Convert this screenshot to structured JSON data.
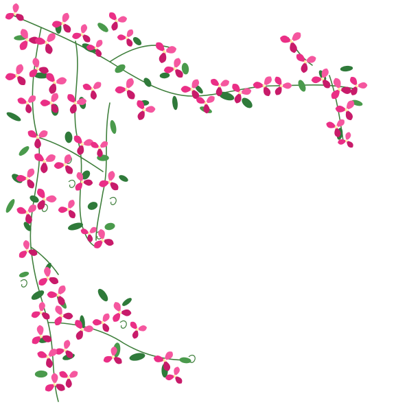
{
  "image": {
    "background_color": "#ffffff",
    "subject": "bougainvillea-vine-corner",
    "colors": {
      "petal": "#ea2f86",
      "petal_shade": "#c81b6a",
      "petal_light": "#f5579f",
      "center": "#fbe7a0",
      "center_dot": "#ffffff",
      "leaf": "#2f7a3a",
      "leaf_light": "#4a9a4c",
      "stem": "#3f7f3c"
    }
  }
}
